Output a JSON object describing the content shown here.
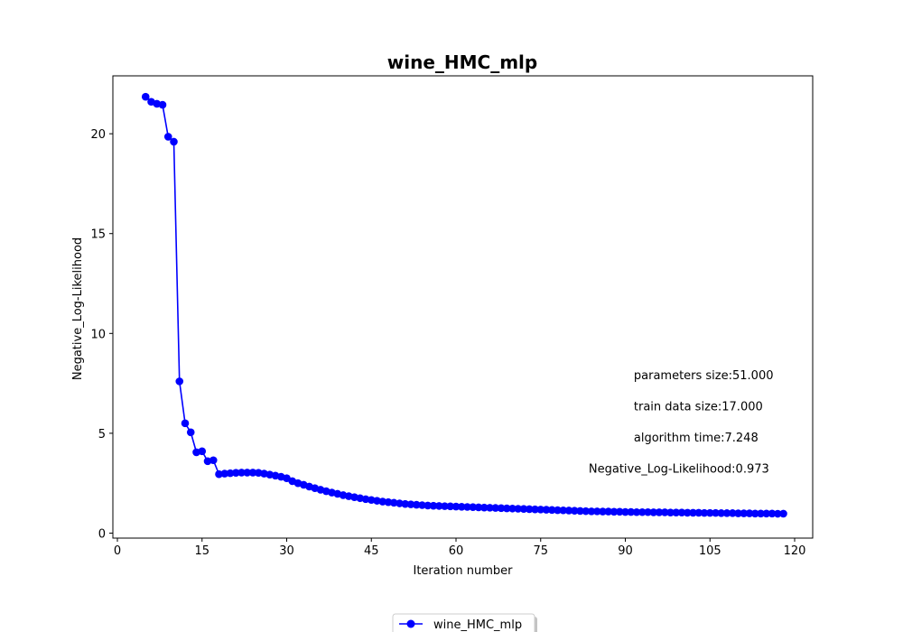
{
  "chart_data": {
    "type": "line",
    "title": "wine_HMC_mlp",
    "xlabel": "Iteration number",
    "ylabel": "Negative_Log-Likelihood",
    "xlim": [
      -0.8,
      123.2
    ],
    "ylim": [
      -0.25,
      22.9
    ],
    "xticks": [
      0,
      15,
      30,
      45,
      60,
      75,
      90,
      105,
      120
    ],
    "yticks": [
      0,
      5,
      10,
      15,
      20
    ],
    "grid": false,
    "legend_position": "bottom-center",
    "series": [
      {
        "name": "wine_HMC_mlp",
        "color": "#0000ff",
        "marker": "circle",
        "x": [
          5,
          6,
          7,
          8,
          9,
          10,
          11,
          12,
          13,
          14,
          15,
          16,
          17,
          18,
          19,
          20,
          21,
          22,
          23,
          24,
          25,
          26,
          27,
          28,
          29,
          30,
          31,
          32,
          33,
          34,
          35,
          36,
          37,
          38,
          39,
          40,
          41,
          42,
          43,
          44,
          45,
          46,
          47,
          48,
          49,
          50,
          51,
          52,
          53,
          54,
          55,
          56,
          57,
          58,
          59,
          60,
          61,
          62,
          63,
          64,
          65,
          66,
          67,
          68,
          69,
          70,
          71,
          72,
          73,
          74,
          75,
          76,
          77,
          78,
          79,
          80,
          81,
          82,
          83,
          84,
          85,
          86,
          87,
          88,
          89,
          90,
          91,
          92,
          93,
          94,
          95,
          96,
          97,
          98,
          99,
          100,
          101,
          102,
          103,
          104,
          105,
          106,
          107,
          108,
          109,
          110,
          111,
          112,
          113,
          114,
          115,
          116,
          117,
          118
        ],
        "values": [
          21.85,
          21.6,
          21.5,
          21.45,
          19.85,
          19.6,
          7.6,
          5.5,
          5.05,
          4.05,
          4.1,
          3.6,
          3.65,
          2.95,
          2.98,
          3.0,
          3.02,
          3.03,
          3.03,
          3.03,
          3.02,
          2.98,
          2.93,
          2.88,
          2.82,
          2.75,
          2.6,
          2.5,
          2.42,
          2.33,
          2.25,
          2.17,
          2.1,
          2.03,
          1.97,
          1.9,
          1.85,
          1.8,
          1.75,
          1.7,
          1.66,
          1.62,
          1.58,
          1.55,
          1.52,
          1.49,
          1.46,
          1.44,
          1.42,
          1.4,
          1.38,
          1.37,
          1.36,
          1.35,
          1.34,
          1.33,
          1.32,
          1.31,
          1.3,
          1.29,
          1.28,
          1.27,
          1.26,
          1.25,
          1.24,
          1.23,
          1.22,
          1.21,
          1.2,
          1.19,
          1.18,
          1.17,
          1.16,
          1.15,
          1.14,
          1.13,
          1.12,
          1.11,
          1.1,
          1.09,
          1.09,
          1.08,
          1.08,
          1.07,
          1.07,
          1.06,
          1.06,
          1.05,
          1.05,
          1.05,
          1.04,
          1.04,
          1.04,
          1.03,
          1.03,
          1.03,
          1.02,
          1.02,
          1.02,
          1.01,
          1.01,
          1.01,
          1.0,
          1.0,
          1.0,
          0.99,
          0.99,
          0.99,
          0.98,
          0.98,
          0.98,
          0.98,
          0.97,
          0.973
        ]
      }
    ],
    "annotations": [
      {
        "text": "parameters size:51.000",
        "x": 91.5,
        "y": 7.7
      },
      {
        "text": "train data size:17.000",
        "x": 91.5,
        "y": 6.15
      },
      {
        "text": "algorithm time:7.248",
        "x": 91.5,
        "y": 4.58
      },
      {
        "text": "Negative_Log-Likelihood:0.973",
        "x": 83.5,
        "y": 3.02
      }
    ]
  }
}
